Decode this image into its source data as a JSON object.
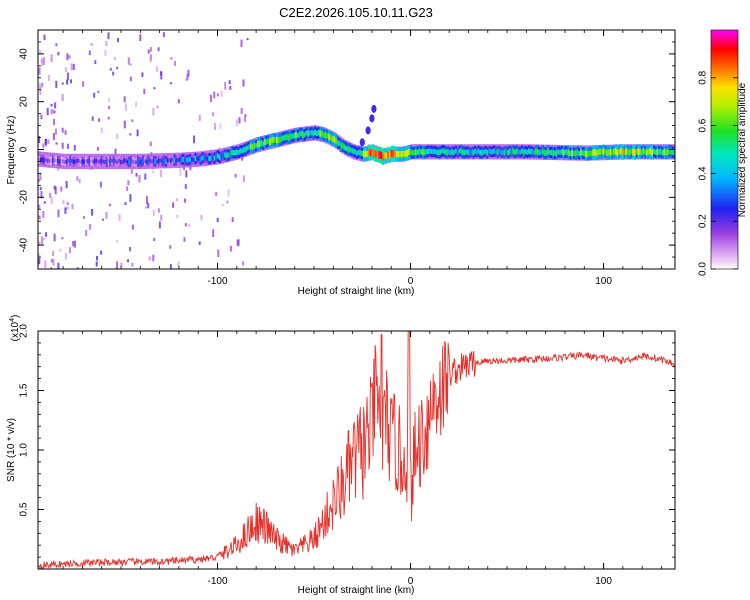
{
  "figure_title": "C2E2.2026.105.10.11.G23",
  "chart_data": [
    {
      "type": "heatmap",
      "title": "C2E2.2026.105.10.11.G23",
      "xlabel": "Height of straight line (km)",
      "ylabel": "Frequency (Hz)",
      "xlim": [
        -193,
        137
      ],
      "ylim": [
        -50,
        50
      ],
      "xticks": [
        -100,
        0,
        100
      ],
      "xtick_labels": [
        "-100",
        "0",
        "100"
      ],
      "yticks": [
        -40,
        -20,
        0,
        20,
        40
      ],
      "ytick_labels": [
        "-40",
        "-20",
        "0",
        "20",
        "40"
      ],
      "colorbar": {
        "label": "Normalized spectral amplitude",
        "range": [
          0,
          1
        ],
        "ticks": [
          0.0,
          0.2,
          0.4,
          0.6,
          0.8
        ],
        "tick_labels": [
          "0.0",
          "0.2",
          "0.4",
          "0.6",
          "0.8"
        ],
        "colormap": "rainbow (white-purple-blue-cyan-green-yellow-red-magenta)"
      },
      "ridge": {
        "name": "Dominant frequency ridge",
        "x": [
          -193,
          -180,
          -160,
          -140,
          -120,
          -110,
          -100,
          -90,
          -80,
          -70,
          -60,
          -50,
          -45,
          -40,
          -35,
          -30,
          -25,
          -20,
          -15,
          -10,
          -5,
          0,
          10,
          30,
          60,
          90,
          110,
          137
        ],
        "y": [
          -4,
          -5,
          -5,
          -5,
          -4.5,
          -4,
          -3,
          -1,
          2,
          4,
          6,
          7,
          6,
          4,
          1,
          -1,
          -2,
          -1,
          -3,
          -2,
          -2,
          -1,
          -1,
          -1,
          -1,
          -1.5,
          -1,
          -1
        ],
        "amplitude": [
          0.15,
          0.2,
          0.2,
          0.25,
          0.3,
          0.35,
          0.4,
          0.5,
          0.55,
          0.6,
          0.55,
          0.5,
          0.7,
          0.6,
          0.5,
          0.45,
          0.6,
          0.9,
          0.85,
          0.8,
          0.7,
          0.6,
          0.5,
          0.45,
          0.45,
          0.6,
          0.7,
          0.55
        ]
      },
      "branch": {
        "name": "Rising branch",
        "x": [
          -25,
          -22,
          -20,
          -19
        ],
        "y": [
          3,
          8,
          13,
          17
        ]
      }
    },
    {
      "type": "line",
      "xlabel": "Height of straight line (km)",
      "ylabel": "SNR (10 * v/v)",
      "scale_note": "(x10",
      "scale_exponent": "4",
      "xlim": [
        -193,
        137
      ],
      "ylim": [
        0,
        2.0
      ],
      "xticks": [
        -100,
        0,
        100
      ],
      "xtick_labels": [
        "-100",
        "0",
        "100"
      ],
      "yticks": [
        0.5,
        1.0,
        1.5,
        2.0
      ],
      "ytick_labels": [
        "0.5",
        "1.0",
        "1.5",
        "2.0"
      ],
      "series": [
        {
          "name": "SNR",
          "color": "#e8302a",
          "x": [
            -193,
            -170,
            -150,
            -130,
            -110,
            -100,
            -90,
            -85,
            -80,
            -75,
            -70,
            -65,
            -60,
            -55,
            -50,
            -45,
            -40,
            -35,
            -30,
            -25,
            -20,
            -18,
            -15,
            -12,
            -10,
            -8,
            -5,
            -2,
            0,
            2,
            5,
            8,
            10,
            12,
            15,
            18,
            20,
            25,
            30,
            40,
            50,
            60,
            70,
            80,
            90,
            95,
            100,
            105,
            110,
            115,
            120,
            125,
            130,
            137
          ],
          "y": [
            0.03,
            0.05,
            0.06,
            0.06,
            0.08,
            0.1,
            0.2,
            0.3,
            0.4,
            0.35,
            0.25,
            0.2,
            0.15,
            0.2,
            0.25,
            0.4,
            0.55,
            0.7,
            0.9,
            1.0,
            1.2,
            1.5,
            1.1,
            1.3,
            1.0,
            1.1,
            0.9,
            1.0,
            0.65,
            0.9,
            1.1,
            1.2,
            1.3,
            1.45,
            1.5,
            1.55,
            1.65,
            1.68,
            1.72,
            1.75,
            1.75,
            1.76,
            1.77,
            1.78,
            1.8,
            1.78,
            1.77,
            1.76,
            1.75,
            1.77,
            1.79,
            1.78,
            1.76,
            1.72
          ]
        }
      ]
    }
  ]
}
